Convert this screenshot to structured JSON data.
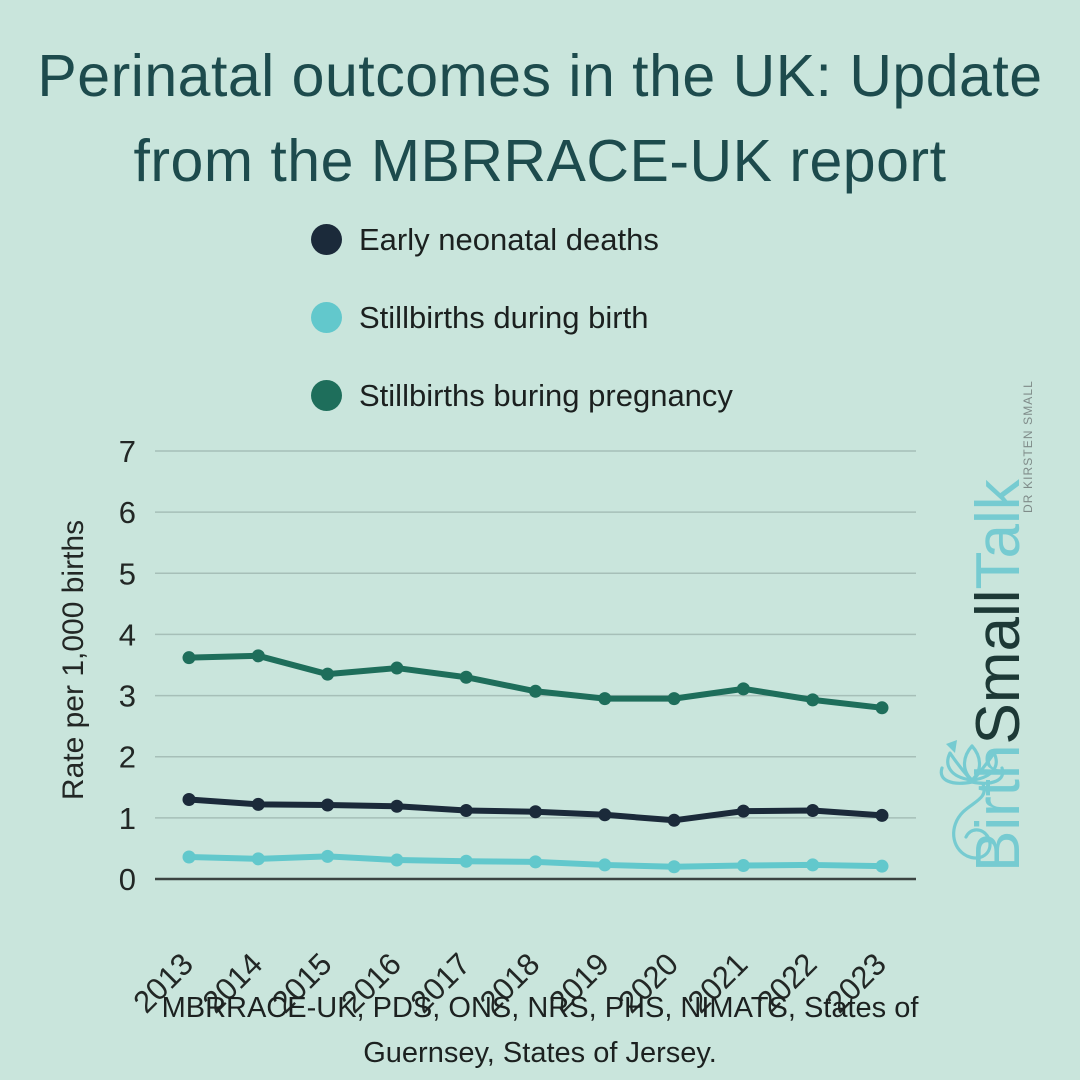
{
  "title": {
    "line1": "Perinatal outcomes in the UK: Update",
    "line2": "from the MBRRACE-UK report"
  },
  "legend": {
    "items": [
      {
        "label": "Early neonatal deaths",
        "color": "#1b2a3a"
      },
      {
        "label": "Stillbirths during birth",
        "color": "#62c8cc"
      },
      {
        "label": "Stillbirths buring pregnancy",
        "color": "#1e6e5b"
      }
    ]
  },
  "chart_data": {
    "type": "line",
    "x": [
      2013,
      2014,
      2015,
      2016,
      2017,
      2018,
      2019,
      2020,
      2021,
      2022,
      2023
    ],
    "series": [
      {
        "name": "Stillbirths buring pregnancy",
        "color": "#1e6e5b",
        "values": [
          3.62,
          3.65,
          3.35,
          3.45,
          3.3,
          3.07,
          2.95,
          2.95,
          3.11,
          2.93,
          2.8
        ]
      },
      {
        "name": "Early neonatal deaths",
        "color": "#1b2a3a",
        "values": [
          1.3,
          1.22,
          1.21,
          1.19,
          1.12,
          1.1,
          1.05,
          0.96,
          1.11,
          1.12,
          1.04
        ]
      },
      {
        "name": "Stillbirths during birth",
        "color": "#62c8cc",
        "values": [
          0.36,
          0.33,
          0.37,
          0.31,
          0.29,
          0.28,
          0.23,
          0.2,
          0.22,
          0.23,
          0.21
        ]
      }
    ],
    "title": "Perinatal outcomes in the UK: Update from the MBRRACE-UK report",
    "xlabel": "",
    "ylabel": "Rate per 1,000 births",
    "ylim": [
      0,
      7
    ],
    "yticks": [
      0,
      1,
      2,
      3,
      4,
      5,
      6,
      7
    ],
    "grid": true,
    "legend_position": "top-left-stack"
  },
  "source": {
    "line1": "MBRRACE-UK, PDS, ONS, NRS, PHS, NIMATS, States of",
    "line2": "Guernsey, States of Jersey."
  },
  "logo": {
    "word1": "Birth",
    "word2": "Small",
    "word3": "Talk",
    "subtitle": "DR KIRSTEN SMALL",
    "light_color": "#76cbd1",
    "dark_color": "#1d3936"
  },
  "colors": {
    "background": "#c9e5dc",
    "title": "#1d4b4d",
    "text": "#222725",
    "gridline": "#a6bfb8",
    "axis": "#3b4341"
  }
}
